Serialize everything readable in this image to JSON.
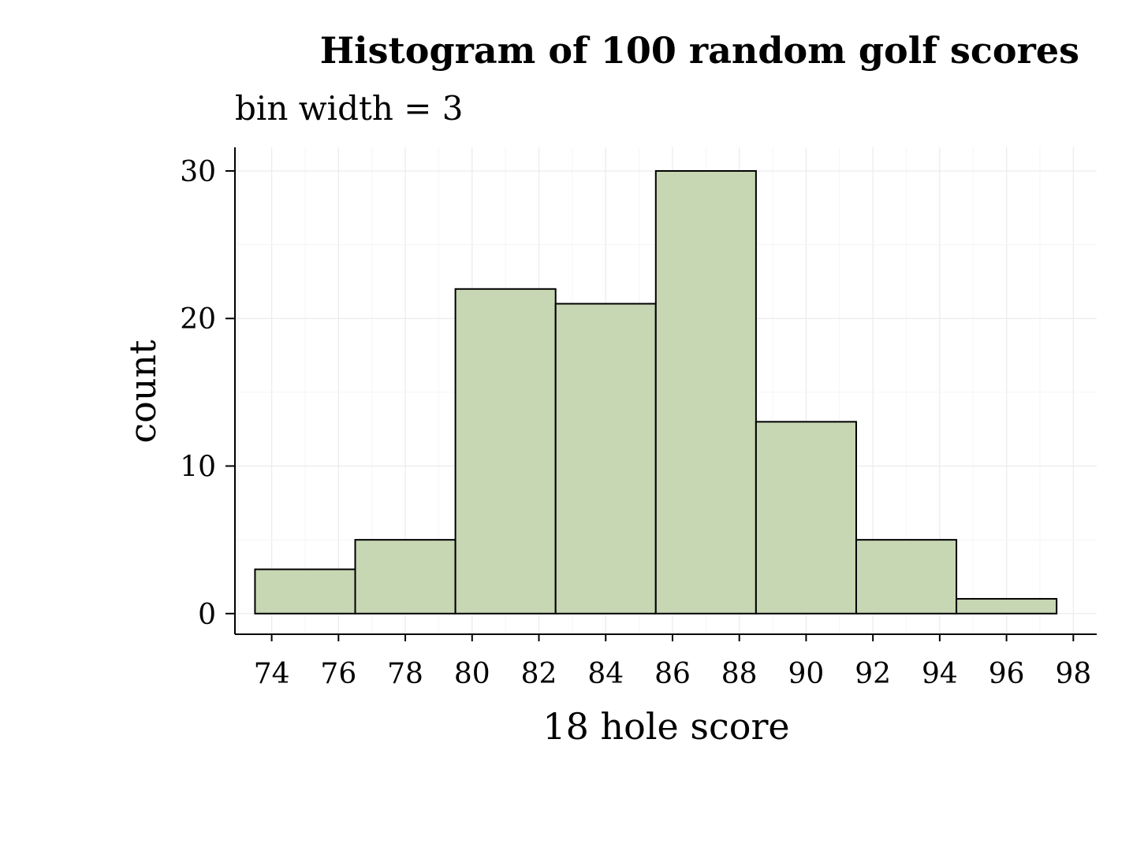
{
  "chart_data": {
    "type": "bar",
    "title": "Histogram of 100 random golf scores",
    "subtitle": "bin width = 3",
    "xlabel": "18 hole score",
    "ylabel": "count",
    "bin_width": 3,
    "bins": [
      {
        "start": 73.5,
        "end": 76.5,
        "count": 3
      },
      {
        "start": 76.5,
        "end": 79.5,
        "count": 5
      },
      {
        "start": 79.5,
        "end": 82.5,
        "count": 22
      },
      {
        "start": 82.5,
        "end": 85.5,
        "count": 21
      },
      {
        "start": 85.5,
        "end": 88.5,
        "count": 30
      },
      {
        "start": 88.5,
        "end": 91.5,
        "count": 13
      },
      {
        "start": 91.5,
        "end": 94.5,
        "count": 5
      },
      {
        "start": 94.5,
        "end": 97.5,
        "count": 1
      }
    ],
    "xlim": [
      72.9,
      98.7
    ],
    "ylim": [
      -1.4,
      31.6
    ],
    "x_ticks": [
      74,
      76,
      78,
      80,
      82,
      84,
      86,
      88,
      90,
      92,
      94,
      96,
      98
    ],
    "y_ticks": [
      0,
      10,
      20,
      30
    ],
    "grid": true,
    "legend": "none",
    "colors": {
      "bar_fill": "#c7d6b3",
      "bar_outline": "#000000"
    }
  }
}
